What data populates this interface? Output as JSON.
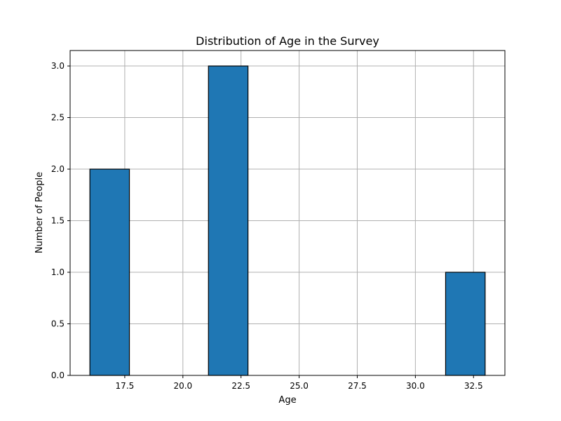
{
  "chart_data": {
    "type": "bar",
    "title": "Distribution of Age in the Survey",
    "xlabel": "Age",
    "ylabel": "Number of People",
    "xlim": [
      15.15,
      33.85
    ],
    "ylim": [
      0,
      3.15
    ],
    "xticks": [
      17.5,
      20.0,
      22.5,
      25.0,
      27.5,
      30.0,
      32.5
    ],
    "yticks": [
      0.0,
      0.5,
      1.0,
      1.5,
      2.0,
      2.5,
      3.0
    ],
    "grid": true,
    "bar_color": "#1f77b4",
    "bins": [
      {
        "start": 16.0,
        "end": 17.7,
        "count": 2
      },
      {
        "start": 17.7,
        "end": 19.4,
        "count": 0
      },
      {
        "start": 19.4,
        "end": 21.1,
        "count": 0
      },
      {
        "start": 21.1,
        "end": 22.8,
        "count": 3
      },
      {
        "start": 22.8,
        "end": 24.5,
        "count": 0
      },
      {
        "start": 24.5,
        "end": 26.2,
        "count": 0
      },
      {
        "start": 26.2,
        "end": 27.9,
        "count": 0
      },
      {
        "start": 27.9,
        "end": 29.6,
        "count": 0
      },
      {
        "start": 29.6,
        "end": 31.3,
        "count": 0
      },
      {
        "start": 31.3,
        "end": 33.0,
        "count": 1
      }
    ]
  }
}
